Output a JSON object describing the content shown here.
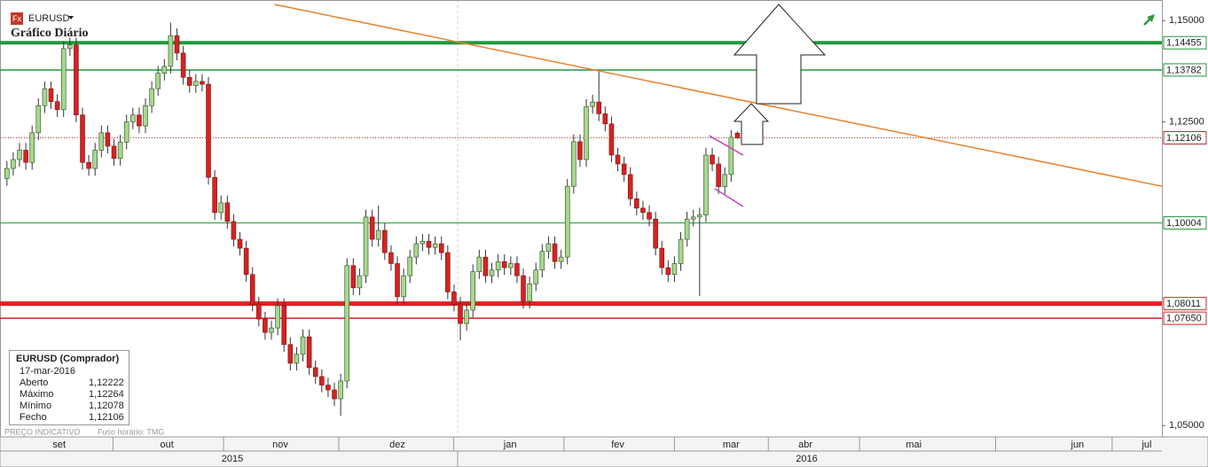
{
  "chart_data": {
    "type": "candlestick",
    "symbol": "EURUSD",
    "title": "Gráfico Diário",
    "footer": "PREÇO INDICATIVO",
    "timezone": "Fuso horário: TMG",
    "up_color": "#a6d88f",
    "down_color": "#d42323",
    "open": [
      1.111,
      1.1135,
      1.1157,
      1.118,
      1.115,
      1.1223,
      1.129,
      1.1332,
      1.13,
      1.128,
      1.1431,
      1.144,
      1.1267,
      1.115,
      1.1135,
      1.118,
      1.1223,
      1.119,
      1.116,
      1.12,
      1.125,
      1.1267,
      1.124,
      1.129,
      1.1332,
      1.137,
      1.1387,
      1.1463,
      1.142,
      1.136,
      1.134,
      1.135,
      1.1343,
      1.1113,
      1.1026,
      1.105,
      1.1004,
      1.096,
      1.0938,
      1.0873,
      1.08,
      1.0763,
      1.073,
      1.0741,
      1.0796,
      1.07,
      1.0654,
      1.0676,
      1.0719,
      1.0643,
      1.0621,
      1.06,
      1.0588,
      1.0566,
      1.061,
      1.0895,
      1.084,
      1.087,
      1.1015,
      1.096,
      1.0982,
      1.0927,
      1.09,
      1.0818,
      1.087,
      1.0916,
      1.0949,
      1.0955,
      1.094,
      1.0949,
      1.0927,
      1.083,
      1.08,
      1.0752,
      1.0785,
      1.088,
      1.0916,
      1.087,
      1.0884,
      1.0905,
      1.089,
      1.09,
      1.087,
      1.0807,
      1.085,
      1.0884,
      1.093,
      1.0949,
      1.0905,
      1.0916,
      1.1091,
      1.1201,
      1.1157,
      1.1288,
      1.1299,
      1.127,
      1.1245,
      1.1168,
      1.1146,
      1.112,
      1.106,
      1.1037,
      1.1026,
      1.101,
      1.0938,
      1.089,
      1.0873,
      1.09,
      1.096,
      1.101,
      1.1015,
      1.102,
      1.1168,
      1.1146,
      1.109,
      1.112,
      1.12222
    ],
    "high": [
      1.1153,
      1.1175,
      1.1198,
      1.1198,
      1.1241,
      1.1308,
      1.135,
      1.135,
      1.1318,
      1.1449,
      1.1458,
      1.1458,
      1.1285,
      1.1168,
      1.1198,
      1.1241,
      1.1241,
      1.1208,
      1.1218,
      1.1268,
      1.1285,
      1.1285,
      1.1308,
      1.135,
      1.1388,
      1.1405,
      1.1495,
      1.1481,
      1.1438,
      1.1378,
      1.1368,
      1.1368,
      1.1361,
      1.1131,
      1.1068,
      1.1068,
      1.1022,
      1.0978,
      1.0956,
      1.0891,
      1.0818,
      1.0781,
      1.0759,
      1.0814,
      1.0814,
      1.0718,
      1.0694,
      1.0737,
      1.0737,
      1.0661,
      1.0639,
      1.0618,
      1.0606,
      1.0628,
      1.0913,
      1.0913,
      1.0888,
      1.1033,
      1.1033,
      1.1043,
      1.1,
      1.0945,
      1.0918,
      1.0888,
      1.0934,
      1.0967,
      1.0973,
      1.0973,
      1.0967,
      1.0967,
      1.0945,
      1.0848,
      1.0818,
      1.0803,
      1.0898,
      1.0934,
      1.0934,
      1.0902,
      1.0923,
      1.0923,
      1.0918,
      1.0918,
      1.0888,
      1.0868,
      1.0902,
      1.0948,
      1.0967,
      1.0967,
      1.0934,
      1.1109,
      1.1219,
      1.1219,
      1.1306,
      1.1317,
      1.1376,
      1.1288,
      1.1263,
      1.1186,
      1.1164,
      1.1138,
      1.1078,
      1.1055,
      1.1044,
      1.1028,
      1.0956,
      1.0908,
      1.0918,
      1.0978,
      1.1028,
      1.1033,
      1.1038,
      1.1186,
      1.1186,
      1.1164,
      1.1138,
      1.123,
      1.12264
    ],
    "low": [
      1.1092,
      1.1117,
      1.1139,
      1.1132,
      1.1132,
      1.1205,
      1.1272,
      1.1282,
      1.1262,
      1.1262,
      1.1413,
      1.1249,
      1.1132,
      1.1117,
      1.1117,
      1.1162,
      1.1172,
      1.1142,
      1.1142,
      1.1182,
      1.1232,
      1.1222,
      1.1222,
      1.1272,
      1.1314,
      1.1352,
      1.1369,
      1.1402,
      1.1342,
      1.1322,
      1.1322,
      1.1325,
      1.1095,
      1.1008,
      1.1008,
      1.0986,
      1.0942,
      1.092,
      1.0855,
      1.0782,
      1.0745,
      1.0712,
      1.0712,
      1.0723,
      1.0682,
      1.0636,
      1.0636,
      1.0658,
      1.0625,
      1.0603,
      1.0582,
      1.057,
      1.0548,
      1.0524,
      1.0592,
      1.0822,
      1.0822,
      1.0852,
      1.0942,
      1.0942,
      1.0909,
      1.0882,
      1.08,
      1.08,
      1.0852,
      1.0898,
      1.0931,
      1.0922,
      1.0922,
      1.0909,
      1.0812,
      1.0782,
      1.071,
      1.0734,
      1.0767,
      1.0862,
      1.0852,
      1.0852,
      1.0866,
      1.0872,
      1.0872,
      1.0852,
      1.0789,
      1.0789,
      1.0832,
      1.0866,
      1.0912,
      1.0887,
      1.0887,
      1.0898,
      1.1073,
      1.1139,
      1.1139,
      1.127,
      1.1252,
      1.1227,
      1.115,
      1.1128,
      1.1102,
      1.1042,
      1.1019,
      1.1008,
      1.0992,
      1.092,
      1.0872,
      1.0855,
      1.0855,
      1.0882,
      1.0942,
      1.0992,
      1.082,
      1.1002,
      1.1128,
      1.1072,
      1.1072,
      1.1102,
      1.12078
    ],
    "close": [
      1.1135,
      1.1157,
      1.118,
      1.115,
      1.1223,
      1.129,
      1.1332,
      1.13,
      1.128,
      1.1431,
      1.144,
      1.1267,
      1.115,
      1.1135,
      1.118,
      1.1223,
      1.119,
      1.116,
      1.12,
      1.125,
      1.1267,
      1.124,
      1.129,
      1.1332,
      1.137,
      1.1387,
      1.1463,
      1.142,
      1.136,
      1.134,
      1.135,
      1.1343,
      1.1113,
      1.1026,
      1.105,
      1.1004,
      1.096,
      1.0938,
      1.0873,
      1.08,
      1.0763,
      1.073,
      1.0741,
      1.0796,
      1.07,
      1.0654,
      1.0676,
      1.0719,
      1.0643,
      1.0621,
      1.06,
      1.0588,
      1.0566,
      1.061,
      1.0895,
      1.084,
      1.087,
      1.1015,
      1.096,
      1.0982,
      1.0927,
      1.09,
      1.0818,
      1.087,
      1.0916,
      1.0949,
      1.0955,
      1.094,
      1.0949,
      1.0927,
      1.083,
      1.08,
      1.0752,
      1.0785,
      1.088,
      1.0916,
      1.087,
      1.0884,
      1.0905,
      1.089,
      1.09,
      1.087,
      1.0807,
      1.085,
      1.0884,
      1.093,
      1.0949,
      1.0905,
      1.0916,
      1.1091,
      1.1201,
      1.1157,
      1.1288,
      1.1299,
      1.127,
      1.1245,
      1.1168,
      1.1146,
      1.112,
      1.106,
      1.1037,
      1.1026,
      1.101,
      1.0938,
      1.089,
      1.0873,
      1.09,
      1.096,
      1.101,
      1.1015,
      1.102,
      1.1168,
      1.1146,
      1.109,
      1.112,
      1.1212,
      1.12106
    ],
    "xlim": [
      -1.1,
      183.4
    ],
    "ylim": [
      1.0472,
      1.1551
    ],
    "xticks": [
      {
        "value": 8.3,
        "label": "set"
      },
      {
        "value": 25.4,
        "label": "out"
      },
      {
        "value": 43.4,
        "label": "nov"
      },
      {
        "value": 62,
        "label": "dez"
      },
      {
        "value": 79.9,
        "label": "jan"
      },
      {
        "value": 97,
        "label": "fev"
      },
      {
        "value": 115,
        "label": "mar"
      },
      {
        "value": 126.8,
        "label": "abr"
      },
      {
        "value": 144,
        "label": "mai"
      },
      {
        "value": 170,
        "label": "jun"
      },
      {
        "value": 181,
        "label": "jul"
      }
    ],
    "year_ticks": [
      {
        "value": 35.8,
        "label": "2015"
      },
      {
        "value": 127,
        "label": "2016"
      }
    ],
    "yticks": [
      {
        "value": 1.15,
        "label": "1,15000"
      },
      {
        "value": 1.125,
        "label": "1,12500"
      },
      {
        "value": 1.05,
        "label": "1,05000"
      }
    ],
    "levels": [
      {
        "value": 1.14455,
        "label": "1,14455",
        "color": "#1f9a3a",
        "width": 4
      },
      {
        "value": 1.13782,
        "label": "1,13782",
        "color": "#1f9a3a",
        "width": 1.5
      },
      {
        "value": 1.12106,
        "label": "1,12106",
        "color": "#b03030",
        "width": 1,
        "dash": true
      },
      {
        "value": 1.10004,
        "label": "1,10004",
        "color": "#1f9a3a",
        "width": 1
      },
      {
        "value": 1.08011,
        "label": "1,08011",
        "color": "#e02020",
        "width": 5
      },
      {
        "value": 1.0765,
        "label": "1,07650",
        "color": "#d02020",
        "width": 1.5
      }
    ],
    "trendlines": [
      {
        "x": [
          42.5,
          183.4
        ],
        "y": [
          1.154,
          1.1091
        ],
        "color": "#e8822e"
      },
      {
        "x": [
          111.5,
          116.9
        ],
        "y": [
          1.1216,
          1.1168
        ],
        "color": "#c040c0"
      },
      {
        "x": [
          112.4,
          116.9
        ],
        "y": [
          1.1085,
          1.1041
        ],
        "color": "#c040c0"
      }
    ],
    "info": {
      "title": "EURUSD (Comprador)",
      "date": "17-mar-2016",
      "rows": [
        [
          "Aberto",
          "1,12222"
        ],
        [
          "Máximo",
          "1,12264"
        ],
        [
          "Mínimo",
          "1,12078"
        ],
        [
          "Fecho",
          "1,12106"
        ]
      ]
    }
  }
}
